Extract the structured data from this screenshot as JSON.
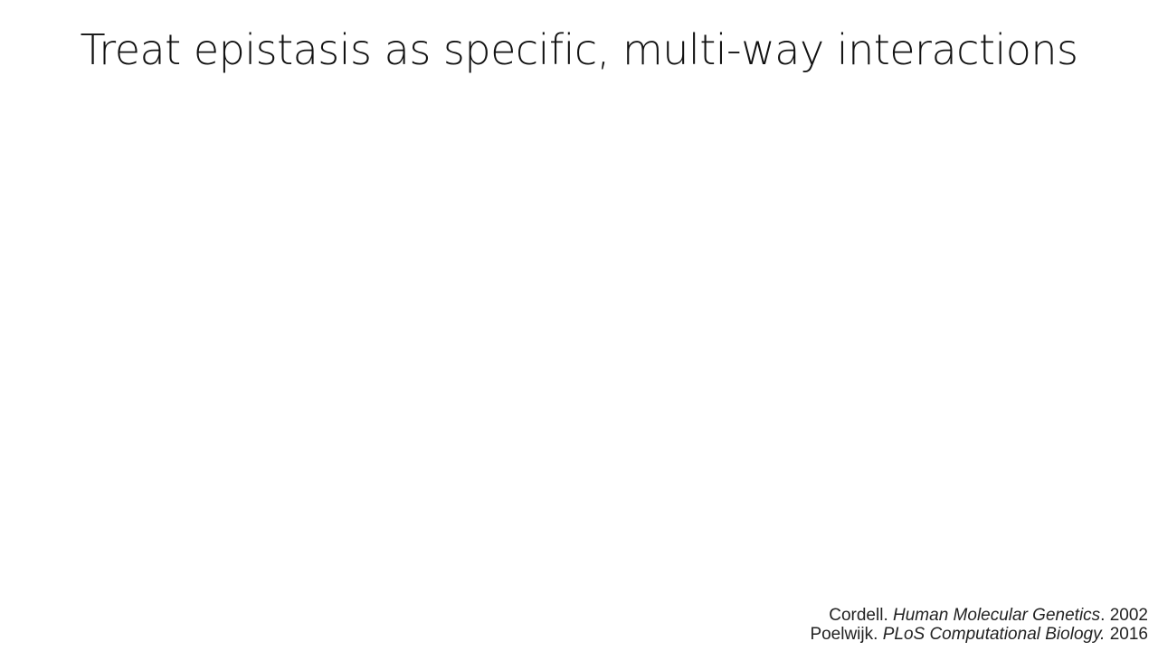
{
  "slide": {
    "title": "Treat epistasis as specific, multi-way interactions",
    "citations": [
      {
        "author": "Cordell.",
        "journal": "Human Molecular Genetics",
        "year": ". 2002"
      },
      {
        "author": "Poelwijk.",
        "journal": "PLoS Computational Biology.",
        "year": " 2016"
      }
    ]
  }
}
